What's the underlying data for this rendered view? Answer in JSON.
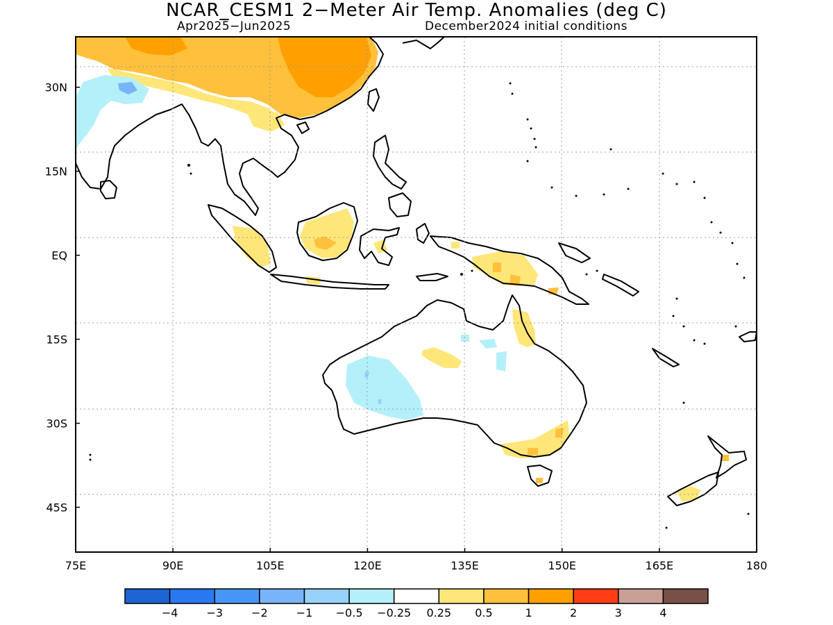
{
  "title": "NCAR_CESM1 2−Meter Air Temp. Anomalies (deg C)",
  "subtitle_left": "Apr2025−Jun2025",
  "subtitle_right": "December2024 initial conditions",
  "map": {
    "lon_range": [
      75,
      180
    ],
    "lat_range": [
      -53,
      39
    ],
    "lat_ticks": [
      {
        "value": 30,
        "label": "30N"
      },
      {
        "value": 15,
        "label": "15N"
      },
      {
        "value": 0,
        "label": "EQ"
      },
      {
        "value": -15,
        "label": "15S"
      },
      {
        "value": -30,
        "label": "30S"
      },
      {
        "value": -45,
        "label": "45S"
      }
    ],
    "lon_ticks": [
      {
        "value": 75,
        "label": "75E"
      },
      {
        "value": 90,
        "label": "90E"
      },
      {
        "value": 105,
        "label": "105E"
      },
      {
        "value": 120,
        "label": "120E"
      },
      {
        "value": 135,
        "label": "135E"
      },
      {
        "value": 150,
        "label": "150E"
      },
      {
        "value": 165,
        "label": "165E"
      },
      {
        "value": 180,
        "label": "180"
      }
    ],
    "gridlines": "dotted"
  },
  "colorbar": {
    "colors": [
      "#1e64d2",
      "#2a78f0",
      "#4696f5",
      "#78b4fa",
      "#96d2fa",
      "#b4f0fa",
      "#ffffff",
      "#ffe678",
      "#ffc03c",
      "#ffa000",
      "#ff3c14",
      "#c8a096",
      "#785046"
    ],
    "labels": [
      "−4",
      "−3",
      "−2",
      "−1",
      "−0.5",
      "−0.25",
      "0.25",
      "0.5",
      "1",
      "2",
      "3",
      "4"
    ]
  }
}
